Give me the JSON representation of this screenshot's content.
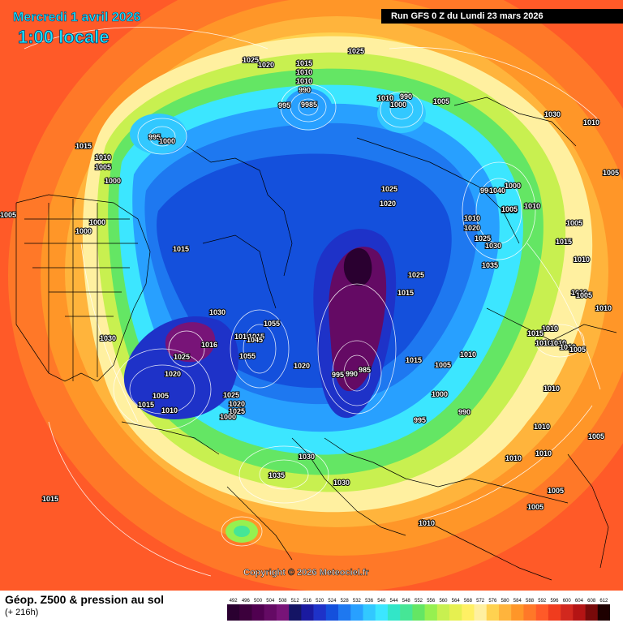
{
  "header": {
    "date": "Mercredi 1 avril 2026",
    "time": "1:00 locale",
    "run": "Run GFS 0 Z du Lundi 23 mars 2026"
  },
  "footer": {
    "copyright": "Copyright © 2026 Meteociel.fr",
    "title": "Géop. Z500 & pression au sol",
    "subtitle": "(+ 216h)"
  },
  "scale": {
    "values": [
      "492",
      "496",
      "500",
      "504",
      "508",
      "512",
      "516",
      "520",
      "524",
      "528",
      "532",
      "536",
      "540",
      "544",
      "548",
      "552",
      "556",
      "560",
      "564",
      "568",
      "572",
      "576",
      "580",
      "584",
      "588",
      "592",
      "596",
      "600",
      "604",
      "608",
      "612"
    ],
    "colors": [
      "#2a0030",
      "#3c003c",
      "#500050",
      "#640a64",
      "#781478",
      "#141464",
      "#1a1aa0",
      "#1e32c8",
      "#1450dc",
      "#1e78f0",
      "#28a0ff",
      "#32c8ff",
      "#3ce6ff",
      "#32e6c8",
      "#46e696",
      "#64e664",
      "#96f050",
      "#c8f050",
      "#e6f050",
      "#fff064",
      "#fff0a0",
      "#ffd250",
      "#ffb43c",
      "#ff9628",
      "#ff7828",
      "#ff5a28",
      "#f03c1e",
      "#d2281e",
      "#b41414",
      "#780a0a",
      "#1e0000"
    ]
  },
  "map": {
    "pressure_labels": [
      {
        "t": "1025"
      },
      {
        "t": "1020"
      },
      {
        "t": "1015"
      },
      {
        "t": "1010"
      },
      {
        "t": "1010"
      },
      {
        "t": "990"
      },
      {
        "t": "995"
      },
      {
        "t": "9985"
      },
      {
        "t": "1025"
      },
      {
        "t": "1010"
      },
      {
        "t": "990"
      },
      {
        "t": "1000"
      },
      {
        "t": "1005"
      },
      {
        "t": "995"
      },
      {
        "t": "1000"
      },
      {
        "t": "1015"
      },
      {
        "t": "1010"
      },
      {
        "t": "1005"
      },
      {
        "t": "1000"
      },
      {
        "t": "1005"
      },
      {
        "t": "1000"
      },
      {
        "t": "1000"
      },
      {
        "t": "1015"
      },
      {
        "t": "1030"
      },
      {
        "t": "1030"
      },
      {
        "t": "1025"
      },
      {
        "t": "1016"
      },
      {
        "t": "1020"
      },
      {
        "t": "1005"
      },
      {
        "t": "1015"
      },
      {
        "t": "1010"
      },
      {
        "t": "1025"
      },
      {
        "t": "1020"
      },
      {
        "t": "1025"
      },
      {
        "t": "1000"
      },
      {
        "t": "1010"
      },
      {
        "t": "1015"
      },
      {
        "t": "1045"
      },
      {
        "t": "1055"
      },
      {
        "t": "1055"
      },
      {
        "t": "1020"
      },
      {
        "t": "995"
      },
      {
        "t": "990"
      },
      {
        "t": "985"
      },
      {
        "t": "1025"
      },
      {
        "t": "1020"
      },
      {
        "t": "1015"
      },
      {
        "t": "1025"
      },
      {
        "t": "1015"
      },
      {
        "t": "1000"
      },
      {
        "t": "995"
      },
      {
        "t": "990"
      },
      {
        "t": "990"
      },
      {
        "t": "1005"
      },
      {
        "t": "1010"
      },
      {
        "t": "1020"
      },
      {
        "t": "1025"
      },
      {
        "t": "1030"
      },
      {
        "t": "1035"
      },
      {
        "t": "1040"
      },
      {
        "t": "1000"
      },
      {
        "t": "1005"
      },
      {
        "t": "1010"
      },
      {
        "t": "1005"
      },
      {
        "t": "1015"
      },
      {
        "t": "1010"
      },
      {
        "t": "1010"
      },
      {
        "t": "1005"
      },
      {
        "t": "1010"
      },
      {
        "t": "1010"
      },
      {
        "t": "1005"
      },
      {
        "t": "1010"
      },
      {
        "t": "1015"
      },
      {
        "t": "1010"
      },
      {
        "t": "1010"
      },
      {
        "t": "1010"
      },
      {
        "t": "1005"
      },
      {
        "t": "1010"
      },
      {
        "t": "1010"
      },
      {
        "t": "1010"
      },
      {
        "t": "1010"
      },
      {
        "t": "1005"
      },
      {
        "t": "1005"
      },
      {
        "t": "1030"
      },
      {
        "t": "1035"
      },
      {
        "t": "1030"
      },
      {
        "t": "1015"
      },
      {
        "t": "1010"
      },
      {
        "t": "1010"
      },
      {
        "t": "1030"
      },
      {
        "t": "1005"
      },
      {
        "t": "1005"
      }
    ]
  }
}
